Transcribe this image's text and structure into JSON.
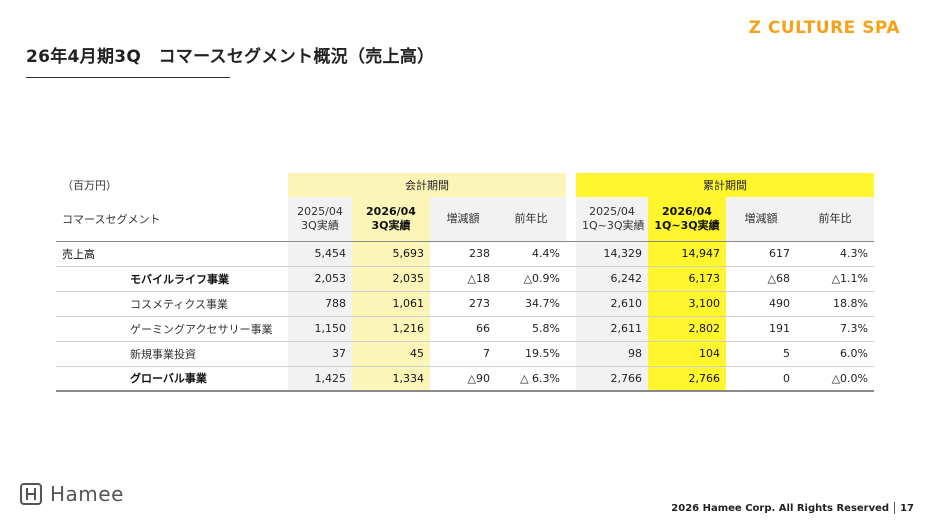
{
  "brand": "Z CULTURE SPA",
  "title": "26年4月期3Q　コマースセグメント概況（売上高）",
  "table": {
    "unit": "（百万円）",
    "group_period": "会計期間",
    "group_cumulative": "累計期間",
    "segment_header": "コマースセグメント",
    "cols": {
      "prev_q_line1": "2025/04",
      "prev_q_line2": "3Q実績",
      "cur_q_line1": "2026/04",
      "cur_q_line2": "3Q実績",
      "diff": "増減額",
      "yoy": "前年比",
      "prev_c_line1": "2025/04",
      "prev_c_line2": "1Q~3Q実績",
      "cur_c_line1": "2026/04",
      "cur_c_line2": "1Q~3Q実績",
      "diff_c": "増減額",
      "yoy_c": "前年比"
    },
    "rows": [
      {
        "label": "売上高",
        "p_prev": "5,454",
        "p_cur": "5,693",
        "p_diff": "238",
        "p_yoy": "4.4%",
        "c_prev": "14,329",
        "c_cur": "14,947",
        "c_diff": "617",
        "c_yoy": "4.3%"
      },
      {
        "label": "モバイルライフ事業",
        "p_prev": "2,053",
        "p_cur": "2,035",
        "p_diff": "△18",
        "p_yoy": "△0.9%",
        "c_prev": "6,242",
        "c_cur": "6,173",
        "c_diff": "△68",
        "c_yoy": "△1.1%"
      },
      {
        "label": "コスメティクス事業",
        "p_prev": "788",
        "p_cur": "1,061",
        "p_diff": "273",
        "p_yoy": "34.7%",
        "c_prev": "2,610",
        "c_cur": "3,100",
        "c_diff": "490",
        "c_yoy": "18.8%"
      },
      {
        "label": "ゲーミングアクセサリー事業",
        "p_prev": "1,150",
        "p_cur": "1,216",
        "p_diff": "66",
        "p_yoy": "5.8%",
        "c_prev": "2,611",
        "c_cur": "2,802",
        "c_diff": "191",
        "c_yoy": "7.3%"
      },
      {
        "label": "新規事業投資",
        "p_prev": "37",
        "p_cur": "45",
        "p_diff": "7",
        "p_yoy": "19.5%",
        "c_prev": "98",
        "c_cur": "104",
        "c_diff": "5",
        "c_yoy": "6.0%"
      },
      {
        "label": "グローバル事業",
        "p_prev": "1,425",
        "p_cur": "1,334",
        "p_diff": "△90",
        "p_yoy": "△ 6.3%",
        "c_prev": "2,766",
        "c_cur": "2,766",
        "c_diff": "0",
        "c_yoy": "△0.0%"
      }
    ]
  },
  "logo_text": "Hamee",
  "footer": {
    "copyright": "2026 Hamee Corp. All Rights Reserved",
    "page": "17"
  },
  "colors": {
    "brand": "#f5a21a",
    "period_bg": "#fbf6b8",
    "cumulative_bg": "#fff62e",
    "col_grey": "#f2f2f2"
  }
}
